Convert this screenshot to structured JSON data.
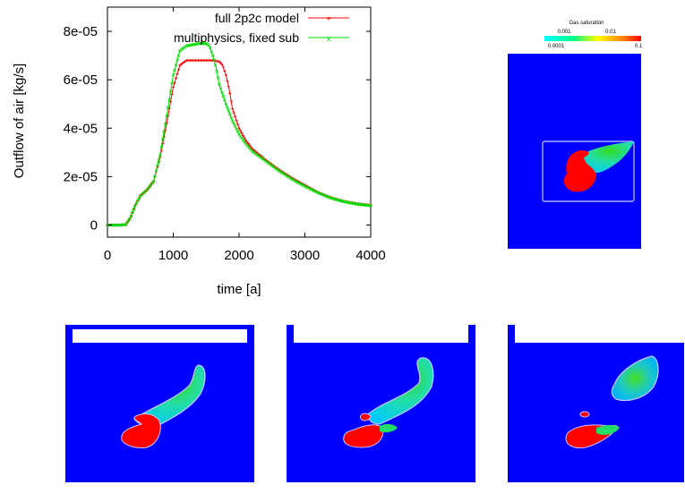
{
  "chart_data": {
    "type": "line",
    "xlabel": "time [a]",
    "ylabel": "Outflow of air [kg/s]",
    "xlim": [
      0,
      4000
    ],
    "ylim": [
      -5e-06,
      9e-05
    ],
    "xticks": [
      0,
      1000,
      2000,
      3000,
      4000
    ],
    "xtick_labels": [
      "0",
      "1000",
      "2000",
      "3000",
      "4000"
    ],
    "yticks": [
      0,
      2e-05,
      4e-05,
      6e-05,
      8e-05
    ],
    "ytick_labels": [
      "0",
      "2e-05",
      "4e-05",
      "6e-05",
      "8e-05"
    ],
    "grid": false,
    "legend_position": "top-right",
    "series": [
      {
        "name": "full 2p2c model",
        "color": "#ff0000",
        "marker": "+",
        "points": [
          [
            0,
            0
          ],
          [
            100,
            0
          ],
          [
            200,
            0
          ],
          [
            280,
            2e-07
          ],
          [
            350,
            3e-06
          ],
          [
            420,
            8e-06
          ],
          [
            500,
            1.2e-05
          ],
          [
            600,
            1.45e-05
          ],
          [
            700,
            1.8e-05
          ],
          [
            800,
            2.8e-05
          ],
          [
            900,
            4.2e-05
          ],
          [
            1000,
            5.7e-05
          ],
          [
            1100,
            6.6e-05
          ],
          [
            1200,
            6.8e-05
          ],
          [
            1300,
            6.8e-05
          ],
          [
            1400,
            6.8e-05
          ],
          [
            1500,
            6.8e-05
          ],
          [
            1600,
            6.8e-05
          ],
          [
            1700,
            6.75e-05
          ],
          [
            1750,
            6.6e-05
          ],
          [
            1800,
            6.2e-05
          ],
          [
            1850,
            5.6e-05
          ],
          [
            1900,
            4.8e-05
          ],
          [
            2000,
            4e-05
          ],
          [
            2100,
            3.5e-05
          ],
          [
            2200,
            3.15e-05
          ],
          [
            2400,
            2.7e-05
          ],
          [
            2600,
            2.3e-05
          ],
          [
            2800,
            1.95e-05
          ],
          [
            3000,
            1.65e-05
          ],
          [
            3200,
            1.35e-05
          ],
          [
            3400,
            1.13e-05
          ],
          [
            3600,
            9.8e-06
          ],
          [
            3800,
            8.8e-06
          ],
          [
            4000,
            8.2e-06
          ]
        ]
      },
      {
        "name": "multiphysics, fixed sub",
        "color": "#00dd00",
        "marker": "x",
        "points": [
          [
            0,
            0
          ],
          [
            100,
            0
          ],
          [
            200,
            0
          ],
          [
            280,
            2e-07
          ],
          [
            350,
            3e-06
          ],
          [
            420,
            8e-06
          ],
          [
            500,
            1.2e-05
          ],
          [
            600,
            1.45e-05
          ],
          [
            700,
            1.8e-05
          ],
          [
            800,
            2.9e-05
          ],
          [
            900,
            4.5e-05
          ],
          [
            1000,
            6.2e-05
          ],
          [
            1100,
            7.2e-05
          ],
          [
            1200,
            7.4e-05
          ],
          [
            1300,
            7.45e-05
          ],
          [
            1400,
            7.5e-05
          ],
          [
            1500,
            7.5e-05
          ],
          [
            1550,
            7.4e-05
          ],
          [
            1600,
            7e-05
          ],
          [
            1650,
            6.5e-05
          ],
          [
            1700,
            5.8e-05
          ],
          [
            1800,
            5e-05
          ],
          [
            1900,
            4.3e-05
          ],
          [
            2000,
            3.75e-05
          ],
          [
            2100,
            3.35e-05
          ],
          [
            2200,
            3.05e-05
          ],
          [
            2400,
            2.65e-05
          ],
          [
            2600,
            2.25e-05
          ],
          [
            2800,
            1.9e-05
          ],
          [
            3000,
            1.6e-05
          ],
          [
            3200,
            1.33e-05
          ],
          [
            3400,
            1.11e-05
          ],
          [
            3600,
            9.6e-06
          ],
          [
            3800,
            8.6e-06
          ],
          [
            4000,
            8e-06
          ]
        ]
      }
    ]
  },
  "colorbar": {
    "title": "Gas saturation",
    "top_ticks": [
      "0.001",
      "0.01"
    ],
    "bottom_ticks": [
      "0.0001",
      "0.1"
    ],
    "colors": [
      "#00ffff",
      "#00ff66",
      "#ffff00",
      "#ff8800",
      "#ff0000"
    ]
  },
  "saturation_colors": {
    "background": "#0000ff",
    "low": "#00e5ff",
    "mid": "#22dd22",
    "high": "#ff0000",
    "outline": "#c8c8ff"
  }
}
